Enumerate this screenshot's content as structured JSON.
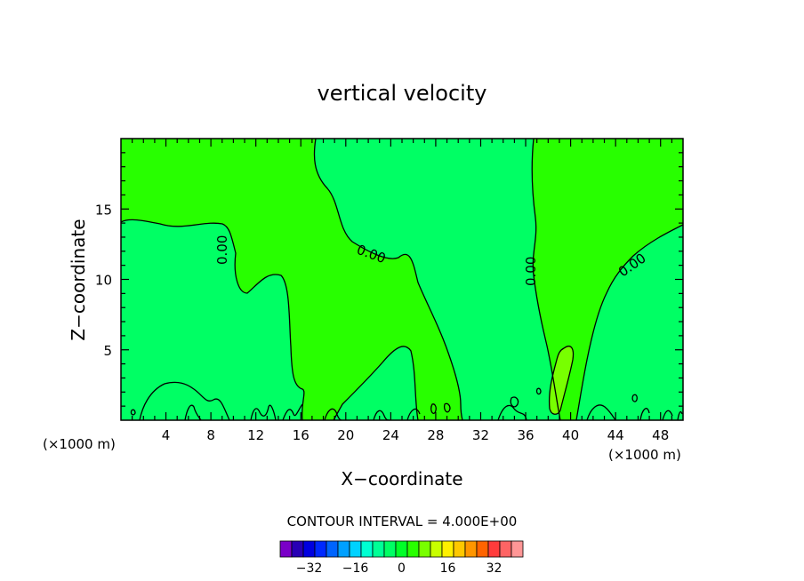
{
  "chart_data": {
    "type": "contour",
    "title": "vertical velocity",
    "xlabel": "X−coordinate",
    "ylabel": "Z−coordinate",
    "x_unit_left": "(×1000 m)",
    "x_unit_right": "(×1000 m)",
    "xlim": [
      0,
      50
    ],
    "ylim": [
      0,
      20
    ],
    "x_ticks": [
      4,
      8,
      12,
      16,
      20,
      24,
      28,
      32,
      36,
      40,
      44,
      48
    ],
    "y_ticks": [
      5,
      10,
      15
    ],
    "contour_interval_text": "CONTOUR INTERVAL = 4.000E+00",
    "contour_labels": [
      "0.00",
      "0.00",
      "0.00",
      "0.00"
    ],
    "colorbar": {
      "colors": [
        "#7a00c8",
        "#2800b4",
        "#0000e0",
        "#0028ff",
        "#0064ff",
        "#00a0ff",
        "#00d2ff",
        "#00ffd2",
        "#00ff96",
        "#00ff64",
        "#00ff28",
        "#28ff00",
        "#78ff00",
        "#c8ff00",
        "#fff000",
        "#ffc800",
        "#ff9600",
        "#ff6400",
        "#ff3c3c",
        "#ff6464",
        "#ff9696"
      ],
      "tick_labels": [
        "−32",
        "−16",
        "0",
        "16",
        "32"
      ]
    },
    "fill_colors": {
      "negative": "#00ff64",
      "zero": "#28ff00",
      "positive": "#78ff00"
    }
  }
}
